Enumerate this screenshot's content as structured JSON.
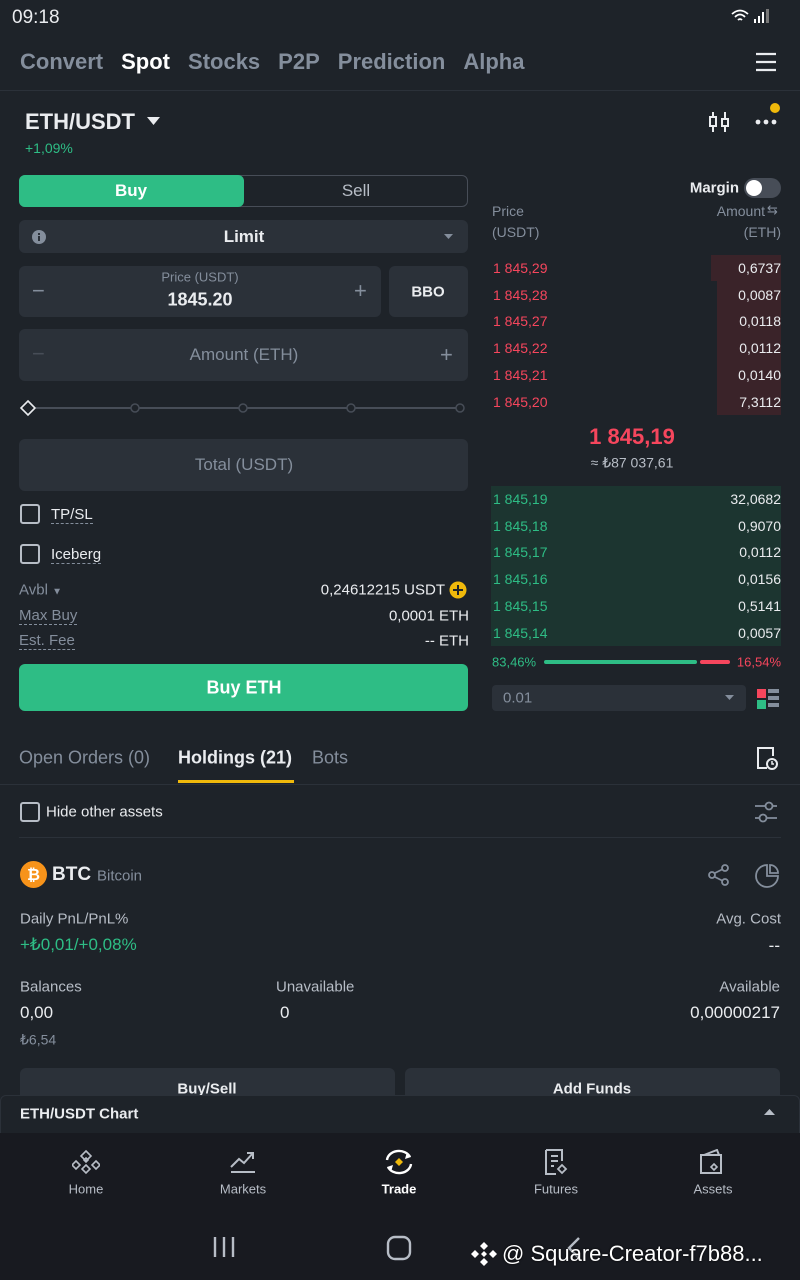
{
  "status_bar": {
    "time": "09:18"
  },
  "top_tabs": [
    "Convert",
    "Spot",
    "Stocks",
    "P2P",
    "Prediction",
    "Alpha"
  ],
  "pair": {
    "name": "ETH/USDT",
    "change": "+1,09%"
  },
  "order_form": {
    "side_tabs": [
      "Buy",
      "Sell"
    ],
    "order_type": "Limit",
    "price_label": "Price (USDT)",
    "price": "1845.20",
    "bbo": "BBO",
    "amount_placeholder": "Amount (ETH)",
    "total_placeholder": "Total (USDT)",
    "options": [
      "TP/SL",
      "Iceberg"
    ],
    "info": [
      {
        "label": "Avbl",
        "value": "0,24612215 USDT"
      },
      {
        "label": "Max Buy",
        "value": "0,0001 ETH"
      },
      {
        "label": "Est. Fee",
        "value": "-- ETH"
      }
    ],
    "submit": "Buy ETH"
  },
  "order_book": {
    "margin_label": "Margin",
    "price_header": "Price",
    "price_unit": "(USDT)",
    "amount_header": "Amount",
    "amount_unit": "(ETH)",
    "asks": [
      {
        "price": "1 845,29",
        "amount": "0,6737"
      },
      {
        "price": "1 845,28",
        "amount": "0,0087"
      },
      {
        "price": "1 845,27",
        "amount": "0,0118"
      },
      {
        "price": "1 845,22",
        "amount": "0,0112"
      },
      {
        "price": "1 845,21",
        "amount": "0,0140"
      },
      {
        "price": "1 845,20",
        "amount": "7,3112"
      }
    ],
    "last_price": "1 845,19",
    "last_price_fiat": "≈ ₺87 037,61",
    "bids": [
      {
        "price": "1 845,19",
        "amount": "32,0682"
      },
      {
        "price": "1 845,18",
        "amount": "0,9070"
      },
      {
        "price": "1 845,17",
        "amount": "0,0112"
      },
      {
        "price": "1 845,16",
        "amount": "0,0156"
      },
      {
        "price": "1 845,15",
        "amount": "0,5141"
      },
      {
        "price": "1 845,14",
        "amount": "0,0057"
      }
    ],
    "buy_ratio": "83,46%",
    "sell_ratio": "16,54%",
    "precision": "0.01"
  },
  "bottom_tabs": [
    "Open Orders (0)",
    "Holdings (21)",
    "Bots"
  ],
  "hide_other_assets": "Hide other assets",
  "holding": {
    "symbol": "BTC",
    "name": "Bitcoin",
    "pnl_label": "Daily PnL/PnL%",
    "pnl_value": "+₺0,01/+0,08%",
    "avg_cost_label": "Avg. Cost",
    "avg_cost": "--",
    "balances_label": "Balances",
    "balances": "0,00",
    "balances_fiat": "₺6,54",
    "unavailable_label": "Unavailable",
    "unavailable": "0",
    "available_label": "Available",
    "available": "0,00000217",
    "buttons": [
      "Buy/Sell",
      "Add Funds"
    ]
  },
  "chart_bar": "ETH/USDT Chart",
  "nav": [
    "Home",
    "Markets",
    "Trade",
    "Futures",
    "Assets"
  ],
  "watermark": "@ Square-Creator-f7b88..."
}
